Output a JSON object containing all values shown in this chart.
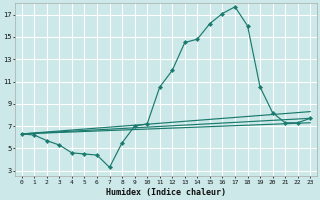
{
  "xlabel": "Humidex (Indice chaleur)",
  "background_color": "#cce8e8",
  "grid_color": "#ffffff",
  "line_color": "#1a7a6e",
  "xlim": [
    -0.5,
    23.5
  ],
  "ylim": [
    2.5,
    18.0
  ],
  "yticks": [
    3,
    5,
    7,
    9,
    11,
    13,
    15,
    17
  ],
  "xticks": [
    0,
    1,
    2,
    3,
    4,
    5,
    6,
    7,
    8,
    9,
    10,
    11,
    12,
    13,
    14,
    15,
    16,
    17,
    18,
    19,
    20,
    21,
    22,
    23
  ],
  "main_x": [
    0,
    1,
    2,
    3,
    4,
    5,
    6,
    7,
    8,
    9,
    10,
    11,
    12,
    13,
    14,
    15,
    16,
    17,
    18,
    19,
    20,
    21,
    22,
    23
  ],
  "main_y": [
    6.3,
    6.2,
    5.7,
    5.3,
    4.6,
    4.5,
    4.4,
    3.3,
    5.5,
    7.0,
    7.2,
    10.5,
    12.0,
    14.5,
    14.8,
    16.2,
    17.1,
    17.7,
    16.0,
    10.5,
    8.2,
    7.3,
    7.3,
    7.7
  ],
  "trend1_x": [
    0,
    23
  ],
  "trend1_y": [
    6.3,
    7.7
  ],
  "trend2_x": [
    0,
    23
  ],
  "trend2_y": [
    6.3,
    8.3
  ],
  "trend3_x": [
    0,
    23
  ],
  "trend3_y": [
    6.3,
    7.3
  ]
}
